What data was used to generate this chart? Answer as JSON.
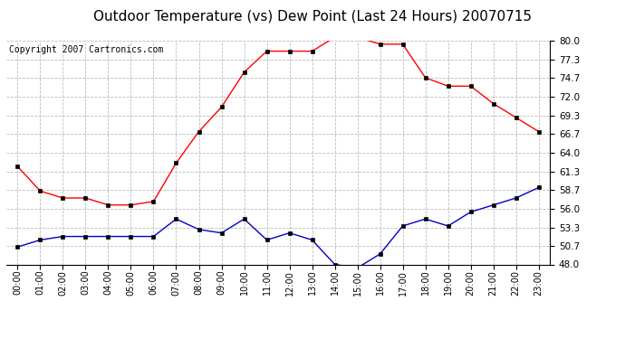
{
  "title": "Outdoor Temperature (vs) Dew Point (Last 24 Hours) 20070715",
  "copyright": "Copyright 2007 Cartronics.com",
  "hours": [
    "00:00",
    "01:00",
    "02:00",
    "03:00",
    "04:00",
    "05:00",
    "06:00",
    "07:00",
    "08:00",
    "09:00",
    "10:00",
    "11:00",
    "12:00",
    "13:00",
    "14:00",
    "15:00",
    "16:00",
    "17:00",
    "18:00",
    "19:00",
    "20:00",
    "21:00",
    "22:00",
    "23:00"
  ],
  "temp": [
    62.0,
    58.5,
    57.5,
    57.5,
    56.5,
    56.5,
    57.0,
    62.5,
    67.0,
    70.5,
    75.5,
    78.5,
    78.5,
    78.5,
    80.5,
    80.5,
    79.5,
    79.5,
    74.7,
    73.5,
    73.5,
    71.0,
    69.0,
    67.0
  ],
  "dew": [
    50.5,
    51.5,
    52.0,
    52.0,
    52.0,
    52.0,
    52.0,
    54.5,
    53.0,
    52.5,
    54.5,
    51.5,
    52.5,
    51.5,
    48.0,
    47.5,
    49.5,
    53.5,
    54.5,
    53.5,
    55.5,
    56.5,
    57.5,
    59.0
  ],
  "temp_color": "#ff0000",
  "dew_color": "#0000cc",
  "bg_color": "#ffffff",
  "grid_color": "#bbbbbb",
  "ylim": [
    48.0,
    80.0
  ],
  "yticks": [
    48.0,
    50.7,
    53.3,
    56.0,
    58.7,
    61.3,
    64.0,
    66.7,
    69.3,
    72.0,
    74.7,
    77.3,
    80.0
  ],
  "title_fontsize": 11,
  "copyright_fontsize": 7,
  "marker_size": 3,
  "linewidth": 1.0
}
